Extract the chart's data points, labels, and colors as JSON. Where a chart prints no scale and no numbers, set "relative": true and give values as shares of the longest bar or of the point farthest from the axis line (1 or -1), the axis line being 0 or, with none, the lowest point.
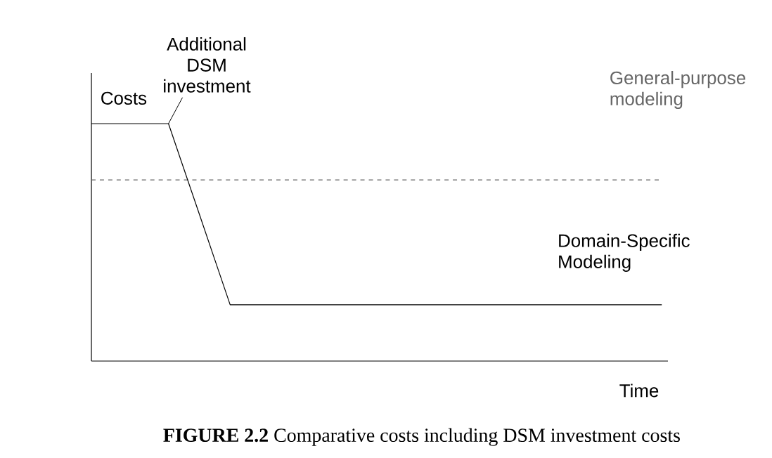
{
  "chart_data": {
    "type": "line",
    "relative": true,
    "title": "**FIGURE 2.2** Comparative costs including DSM investment costs",
    "xlabel": "Time",
    "ylabel": "Costs",
    "categories": [
      null,
      null,
      null,
      null,
      null,
      null,
      null,
      null,
      null,
      null,
      null,
      null,
      null,
      null,
      null,
      null,
      null,
      null,
      null,
      null,
      null,
      null,
      null,
      null,
      null,
      null,
      null,
      null,
      null,
      null,
      null,
      null,
      null,
      null,
      null,
      null,
      null,
      null
    ],
    "series": [
      {
        "name": "General-purpose modeling",
        "color": "#666666",
        "line_style": "dashed",
        "values": [
          0.763,
          0.763,
          0.763,
          0.763,
          0.763,
          0.763,
          0.763,
          0.763,
          0.763,
          0.763,
          0.763,
          0.763,
          0.763,
          0.763,
          0.763,
          0.763,
          0.763,
          0.763,
          0.763,
          0.763,
          0.763,
          0.763,
          0.763,
          0.763,
          0.763,
          0.763,
          0.763,
          0.763,
          0.763,
          0.763,
          0.763,
          0.763,
          0.763,
          0.763,
          0.763,
          0.763,
          0.763,
          0.763
        ]
      },
      {
        "name": "Domain-Specific Modeling",
        "color": "#000000",
        "line_style": "solid",
        "values": [
          1,
          1,
          1,
          1,
          1,
          1,
          0.809,
          0.619,
          0.428,
          0.237,
          0.237,
          0.237,
          0.237,
          0.237,
          0.237,
          0.237,
          0.237,
          0.237,
          0.237,
          0.237,
          0.237,
          0.237,
          0.237,
          0.237,
          0.237,
          0.237,
          0.237,
          0.237,
          0.237,
          0.237,
          0.237,
          0.237,
          0.237,
          0.237,
          0.237,
          0.237,
          0.237,
          0.237
        ]
      }
    ],
    "annotations": [
      "Additional DSM investment"
    ]
  }
}
